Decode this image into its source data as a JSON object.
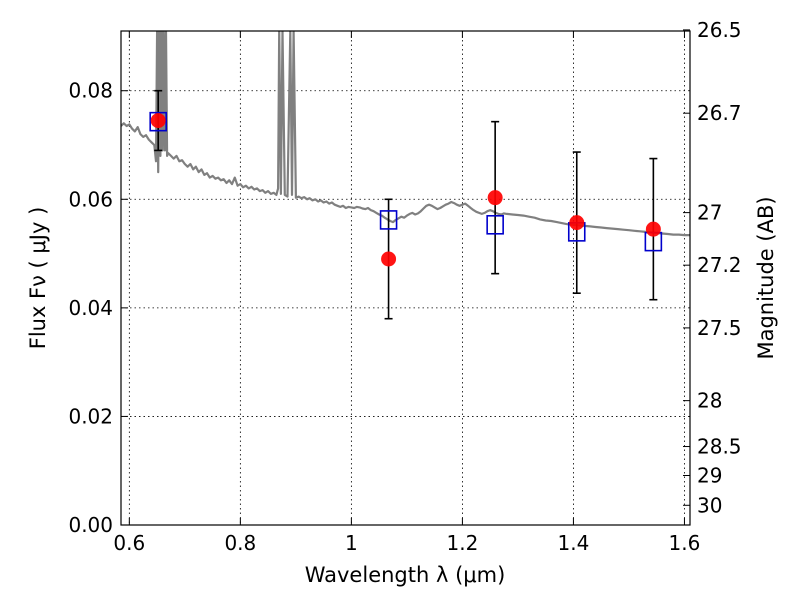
{
  "chart_data": {
    "type": "scatter",
    "title": "",
    "xlabel": "Wavelength  λ (μm)",
    "ylabel": "Flux  Fν  ( μJy )",
    "y2label": "Magnitude (AB)",
    "xlim": [
      0.585,
      1.61
    ],
    "ylim": [
      0.0,
      0.091
    ],
    "x_ticks": [
      0.6,
      0.8,
      1.0,
      1.2,
      1.4,
      1.6
    ],
    "x_tick_labels": [
      "0.6",
      "0.8",
      "1",
      "1.2",
      "1.4",
      "1.6"
    ],
    "y_ticks": [
      0.0,
      0.02,
      0.04,
      0.06,
      0.08
    ],
    "y_tick_labels": [
      "0.00",
      "0.02",
      "0.04",
      "0.06",
      "0.08"
    ],
    "y2_ticks": [
      26.5,
      26.7,
      27,
      27.2,
      27.5,
      28,
      28.5,
      29,
      30
    ],
    "y2_tick_labels": [
      "26.5",
      "26.7",
      "27",
      "27.2",
      "27.5",
      "28",
      "28.5",
      "29",
      "30"
    ],
    "grid": true,
    "colors": {
      "spectrum": "#808080",
      "observed": "#ff0000",
      "model": "#0000cc",
      "errorbar": "#000000"
    },
    "series": [
      {
        "type": "line",
        "x": [
          0.585,
          0.59,
          0.595,
          0.6,
          0.605,
          0.61,
          0.615,
          0.62,
          0.625,
          0.63,
          0.635,
          0.64,
          0.645,
          0.648,
          0.65,
          0.652,
          0.654,
          0.656,
          0.658,
          0.66,
          0.662,
          0.664,
          0.666,
          0.668,
          0.67,
          0.675,
          0.68,
          0.685,
          0.69,
          0.695,
          0.7,
          0.705,
          0.71,
          0.715,
          0.72,
          0.725,
          0.73,
          0.735,
          0.74,
          0.745,
          0.75,
          0.755,
          0.76,
          0.765,
          0.77,
          0.775,
          0.78,
          0.785,
          0.79,
          0.795,
          0.8,
          0.805,
          0.81,
          0.815,
          0.82,
          0.825,
          0.83,
          0.835,
          0.84,
          0.845,
          0.85,
          0.855,
          0.86,
          0.865,
          0.868,
          0.87,
          0.873,
          0.876,
          0.88,
          0.885,
          0.89,
          0.893,
          0.896,
          0.9,
          0.905,
          0.91,
          0.915,
          0.92,
          0.925,
          0.93,
          0.935,
          0.94,
          0.945,
          0.95,
          0.955,
          0.96,
          0.965,
          0.97,
          0.975,
          0.98,
          0.985,
          0.99,
          0.995,
          1.0,
          1.005,
          1.01,
          1.015,
          1.02,
          1.025,
          1.03,
          1.035,
          1.04,
          1.045,
          1.05,
          1.055,
          1.06,
          1.065,
          1.07,
          1.075,
          1.08,
          1.085,
          1.09,
          1.095,
          1.1,
          1.105,
          1.11,
          1.115,
          1.12,
          1.125,
          1.13,
          1.135,
          1.14,
          1.145,
          1.15,
          1.155,
          1.16,
          1.165,
          1.17,
          1.175,
          1.18,
          1.185,
          1.19,
          1.195,
          1.2,
          1.205,
          1.21,
          1.215,
          1.22,
          1.225,
          1.23,
          1.235,
          1.24,
          1.245,
          1.25,
          1.255,
          1.26,
          1.265,
          1.27,
          1.275,
          1.28,
          1.29,
          1.3,
          1.31,
          1.32,
          1.33,
          1.34,
          1.35,
          1.36,
          1.37,
          1.38,
          1.39,
          1.4,
          1.41,
          1.42,
          1.43,
          1.44,
          1.45,
          1.46,
          1.47,
          1.48,
          1.49,
          1.5,
          1.51,
          1.52,
          1.53,
          1.54,
          1.55,
          1.56,
          1.57,
          1.58,
          1.59,
          1.6,
          1.61
        ],
        "y": [
          0.0735,
          0.074,
          0.0735,
          0.0738,
          0.073,
          0.0725,
          0.0733,
          0.072,
          0.0715,
          0.0718,
          0.071,
          0.0705,
          0.07,
          0.067,
          0.091,
          0.065,
          0.091,
          0.068,
          0.091,
          0.069,
          0.091,
          0.069,
          0.091,
          0.068,
          0.0685,
          0.068,
          0.0675,
          0.068,
          0.067,
          0.0672,
          0.0665,
          0.066,
          0.0665,
          0.0655,
          0.066,
          0.065,
          0.0655,
          0.0645,
          0.0648,
          0.064,
          0.0643,
          0.0638,
          0.064,
          0.0635,
          0.0637,
          0.063,
          0.0635,
          0.0628,
          0.064,
          0.0625,
          0.0628,
          0.0622,
          0.0625,
          0.062,
          0.0623,
          0.0618,
          0.062,
          0.0615,
          0.0617,
          0.0612,
          0.0615,
          0.061,
          0.0612,
          0.0608,
          0.062,
          0.091,
          0.061,
          0.091,
          0.0608,
          0.0605,
          0.091,
          0.0608,
          0.091,
          0.0603,
          0.0605,
          0.0602,
          0.0604,
          0.06,
          0.0602,
          0.0598,
          0.06,
          0.0596,
          0.0598,
          0.0594,
          0.0596,
          0.0592,
          0.0594,
          0.059,
          0.0588,
          0.0586,
          0.0588,
          0.0584,
          0.0586,
          0.0585,
          0.0584,
          0.0586,
          0.0585,
          0.0583,
          0.0582,
          0.0584,
          0.058,
          0.0578,
          0.0575,
          0.0572,
          0.057,
          0.0566,
          0.0563,
          0.056,
          0.0558,
          0.0562,
          0.0565,
          0.0568,
          0.0566,
          0.057,
          0.0573,
          0.0575,
          0.0572,
          0.0574,
          0.0578,
          0.0583,
          0.0588,
          0.059,
          0.0588,
          0.0585,
          0.0582,
          0.0584,
          0.0587,
          0.059,
          0.0592,
          0.0595,
          0.0593,
          0.059,
          0.0588,
          0.059,
          0.0592,
          0.0588,
          0.0584,
          0.058,
          0.0577,
          0.0575,
          0.0573,
          0.0575,
          0.0578,
          0.058,
          0.0578,
          0.0575,
          0.0573,
          0.0572,
          0.0574,
          0.0573,
          0.0572,
          0.0571,
          0.057,
          0.0568,
          0.0566,
          0.0563,
          0.0561,
          0.056,
          0.0558,
          0.0556,
          0.0554,
          0.0553,
          0.0552,
          0.0551,
          0.055,
          0.0549,
          0.0548,
          0.0547,
          0.0546,
          0.0545,
          0.0544,
          0.0543,
          0.0542,
          0.0541,
          0.054,
          0.0539,
          0.0538,
          0.0537,
          0.0536,
          0.0535,
          0.0535,
          0.0534,
          0.0534
        ]
      },
      {
        "type": "errorbar",
        "x": [
          0.652,
          1.067,
          1.259,
          1.406,
          1.544
        ],
        "y": [
          0.0745,
          0.049,
          0.0603,
          0.0557,
          0.0545
        ],
        "yerr_low": [
          0.0055,
          0.011,
          0.014,
          0.013,
          0.013
        ],
        "yerr_high": [
          0.0055,
          0.011,
          0.014,
          0.013,
          0.013
        ]
      },
      {
        "type": "scatter",
        "marker": "square",
        "x": [
          0.652,
          1.067,
          1.259,
          1.406,
          1.544
        ],
        "y": [
          0.0743,
          0.0562,
          0.0553,
          0.054,
          0.0522
        ]
      }
    ]
  }
}
